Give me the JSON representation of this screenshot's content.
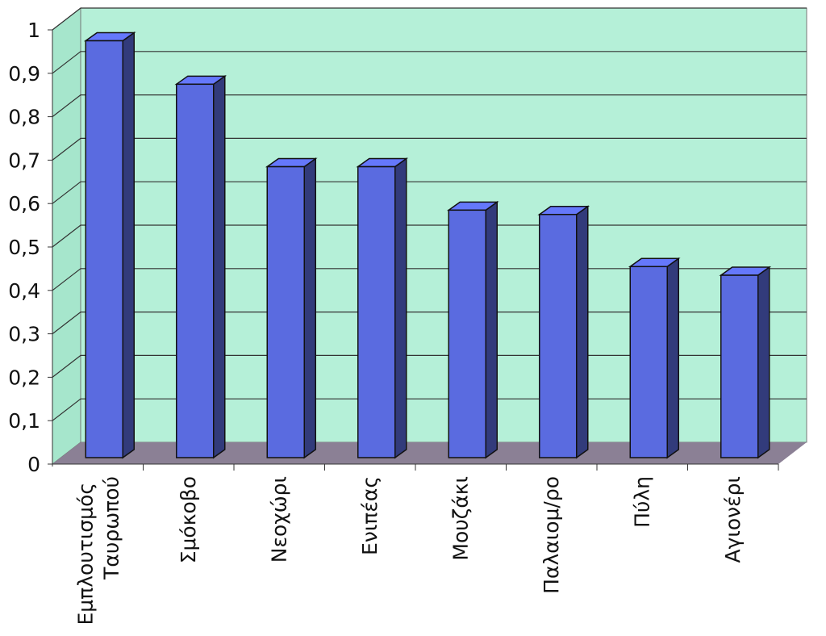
{
  "chart_data": {
    "type": "bar3d",
    "categories": [
      "Εμπλουτισμός Ταυρωπού",
      "Σμόκοβο",
      "Νεοχώρι",
      "Ενιπέας",
      "Μουζάκι",
      "Παλαιομ/ρο",
      "Πύλη",
      "Αγιονέρι"
    ],
    "values": [
      0.96,
      0.86,
      0.67,
      0.67,
      0.57,
      0.56,
      0.44,
      0.42
    ],
    "color": "#5a6be0",
    "ylim": [
      0,
      1
    ],
    "yticks": [
      0,
      {
        "value": 0.1,
        "label": "0,1"
      },
      {
        "value": 0.2,
        "label": "0,2"
      },
      {
        "value": 0.3,
        "label": "0,3"
      },
      {
        "value": 0.4,
        "label": "0,4"
      },
      {
        "value": 0.5,
        "label": "0,5"
      },
      {
        "value": 0.6,
        "label": "0,6"
      },
      {
        "value": 0.7,
        "label": "0,7"
      },
      {
        "value": 0.8,
        "label": "0,8"
      },
      {
        "value": 0.9,
        "label": "0,9"
      },
      1
    ],
    "grid": true
  }
}
